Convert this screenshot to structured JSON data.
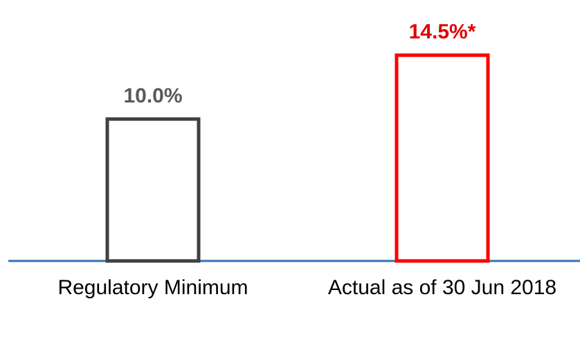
{
  "chart_data": {
    "type": "bar",
    "categories": [
      "Regulatory Minimum",
      "Actual as of 30 Jun 2018"
    ],
    "values": [
      10.0,
      14.5
    ],
    "value_labels": [
      "10.0%",
      "14.5%*"
    ],
    "colors": [
      "#404040",
      "#ff0000"
    ],
    "label_colors": [
      "#595959",
      "#e00000"
    ]
  }
}
